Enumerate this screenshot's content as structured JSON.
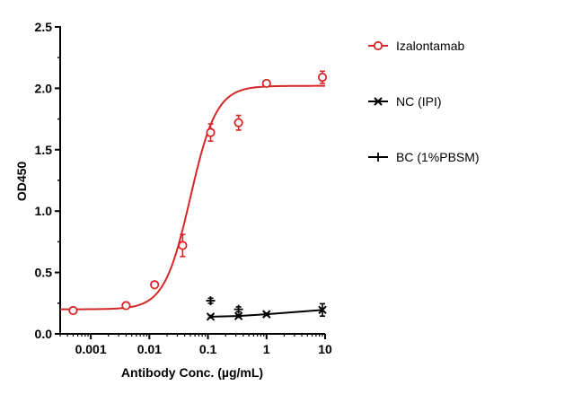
{
  "chart_data": {
    "type": "scatter",
    "title": "",
    "xlabel": "Antibody Conc. (µg/mL)",
    "ylabel": "OD450",
    "x_scale": "log",
    "xlim": [
      0.0003,
      10
    ],
    "ylim": [
      0,
      2.5
    ],
    "x_ticks": [
      0.001,
      0.01,
      0.1,
      1,
      10
    ],
    "x_tick_labels": [
      "0.001",
      "0.01",
      "0.1",
      "1",
      "10"
    ],
    "y_ticks": [
      0,
      0.5,
      1,
      1.5,
      2,
      2.5
    ],
    "y_tick_labels": [
      "0.0",
      "0.5",
      "1.0",
      "1.5",
      "2.0",
      "2.5"
    ],
    "grid": false,
    "legend_position": "right",
    "series": [
      {
        "name": "Izalontamab",
        "color": "#d62728",
        "marker": "open-circle",
        "fit": "4PL",
        "fit_params": {
          "bottom": 0.2,
          "top": 2.02,
          "ec50": 0.05,
          "hill": 1.95
        },
        "x": [
          0.0005,
          0.004,
          0.0123,
          0.037,
          0.111,
          0.333,
          1,
          9
        ],
        "y": [
          0.19,
          0.23,
          0.4,
          0.72,
          1.64,
          1.72,
          2.04,
          2.09
        ],
        "err": [
          0.02,
          0.02,
          0.02,
          0.09,
          0.07,
          0.06,
          0.02,
          0.05
        ]
      },
      {
        "name": "NC (IPI)",
        "color": "#000000",
        "marker": "x",
        "fit": "line",
        "x": [
          0.111,
          0.333,
          1,
          9
        ],
        "y": [
          0.14,
          0.145,
          0.16,
          0.195
        ],
        "err": [
          0.01,
          0.01,
          0.01,
          0.05
        ]
      },
      {
        "name": "BC (1%PBSM)",
        "color": "#000000",
        "marker": "plus",
        "fit": "none",
        "x": [
          0.111,
          0.333
        ],
        "y": [
          0.27,
          0.2
        ],
        "err": [
          0.02,
          0.02
        ]
      }
    ]
  }
}
